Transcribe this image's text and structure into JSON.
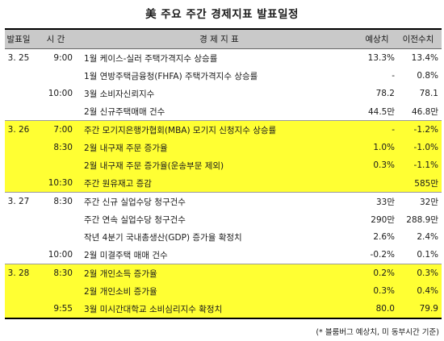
{
  "title": "美 주요 주간 경제지표 발표일정",
  "headers": {
    "date": "발표일",
    "time": "시 간",
    "indicator": "경 제 지 표",
    "forecast": "예상치",
    "previous": "이전수치"
  },
  "groups": [
    {
      "date": "3. 25",
      "highlight": false,
      "rows": [
        {
          "time": "9:00",
          "indicator": "1월 케이스-실러 주택가격지수 상승률",
          "forecast": "13.3%",
          "previous": "13.4%"
        },
        {
          "time": "",
          "indicator": "1월 연방주택금융청(FHFA) 주택가격지수 상승률",
          "forecast": "-",
          "previous": "0.8%"
        },
        {
          "time": "10:00",
          "indicator": "3월 소비자신뢰지수",
          "forecast": "78.2",
          "previous": "78.1"
        },
        {
          "time": "",
          "indicator": "2월 신규주택매매 건수",
          "forecast": "44.5만",
          "previous": "46.8만"
        }
      ]
    },
    {
      "date": "3. 26",
      "highlight": true,
      "rows": [
        {
          "time": "7:00",
          "indicator": "주간 모기지은행가협회(MBA) 모기지 신청지수 상승률",
          "forecast": "-",
          "previous": "-1.2%"
        },
        {
          "time": "8:30",
          "indicator": "2월 내구재 주문 증가율",
          "forecast": "1.0%",
          "previous": "-1.0%"
        },
        {
          "time": "",
          "indicator": "2월 내구재 주문 증가율(운송부문 제외)",
          "forecast": "0.3%",
          "previous": "-1.1%"
        },
        {
          "time": "10:30",
          "indicator": "주간 원유재고 증감",
          "forecast": "",
          "previous": "585만"
        }
      ]
    },
    {
      "date": "3. 27",
      "highlight": false,
      "rows": [
        {
          "time": "8:30",
          "indicator": "주간 신규 실업수당 청구건수",
          "forecast": "33만",
          "previous": "32만"
        },
        {
          "time": "",
          "indicator": "주간 연속 실업수당 청구건수",
          "forecast": "290만",
          "previous": "288.9만"
        },
        {
          "time": "",
          "indicator": "작년 4분기 국내총생산(GDP) 증가율 확정치",
          "forecast": "2.6%",
          "previous": "2.4%"
        },
        {
          "time": "10:00",
          "indicator": "2월 미결주택 매매 건수",
          "forecast": "-0.2%",
          "previous": "0.1%"
        }
      ]
    },
    {
      "date": "3. 28",
      "highlight": true,
      "rows": [
        {
          "time": "8:30",
          "indicator": "2월 개인소득 증가율",
          "forecast": "0.2%",
          "previous": "0.3%"
        },
        {
          "time": "",
          "indicator": "2월 개인소비 증가율",
          "forecast": "0.3%",
          "previous": "0.4%"
        },
        {
          "time": "9:55",
          "indicator": "3월 미시간대학교 소비심리지수 확정치",
          "forecast": "80.0",
          "previous": "79.9"
        }
      ]
    }
  ],
  "footnote": "(* 블룸버그 예상치, 미 동부시간 기준)"
}
